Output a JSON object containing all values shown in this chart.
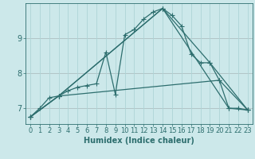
{
  "xlabel": "Humidex (Indice chaleur)",
  "ylabel": "",
  "bg_color": "#cce8ea",
  "grid_color": "#aed4d6",
  "line_color": "#2d6e6e",
  "red_line_color": "#c87878",
  "xlim": [
    -0.5,
    23.5
  ],
  "ylim": [
    6.55,
    10.0
  ],
  "yticks": [
    7,
    8,
    9
  ],
  "xticks": [
    0,
    1,
    2,
    3,
    4,
    5,
    6,
    7,
    8,
    9,
    10,
    11,
    12,
    13,
    14,
    15,
    16,
    17,
    18,
    19,
    20,
    21,
    22,
    23
  ],
  "line1_x": [
    0,
    1,
    2,
    3,
    4,
    5,
    6,
    7,
    8,
    9,
    10,
    11,
    12,
    13,
    14,
    15,
    16,
    17,
    18,
    19,
    20,
    21,
    22,
    23
  ],
  "line1_y": [
    6.75,
    7.0,
    7.3,
    7.35,
    7.5,
    7.6,
    7.65,
    7.7,
    8.6,
    7.4,
    9.1,
    9.25,
    9.55,
    9.75,
    9.85,
    9.65,
    9.35,
    8.55,
    8.3,
    8.3,
    7.8,
    7.0,
    7.0,
    6.95
  ],
  "line2_x": [
    0,
    3,
    14,
    19,
    23
  ],
  "line2_y": [
    6.75,
    7.35,
    9.85,
    8.3,
    6.95
  ],
  "line3_x": [
    0,
    3,
    14,
    21,
    23
  ],
  "line3_y": [
    6.75,
    7.35,
    9.85,
    7.0,
    6.95
  ],
  "line4_x": [
    0,
    3,
    20,
    23
  ],
  "line4_y": [
    6.75,
    7.35,
    7.8,
    6.95
  ],
  "linewidth": 0.9,
  "marker_size": 2.8,
  "tick_fontsize": 6.0,
  "xlabel_fontsize": 7.0
}
